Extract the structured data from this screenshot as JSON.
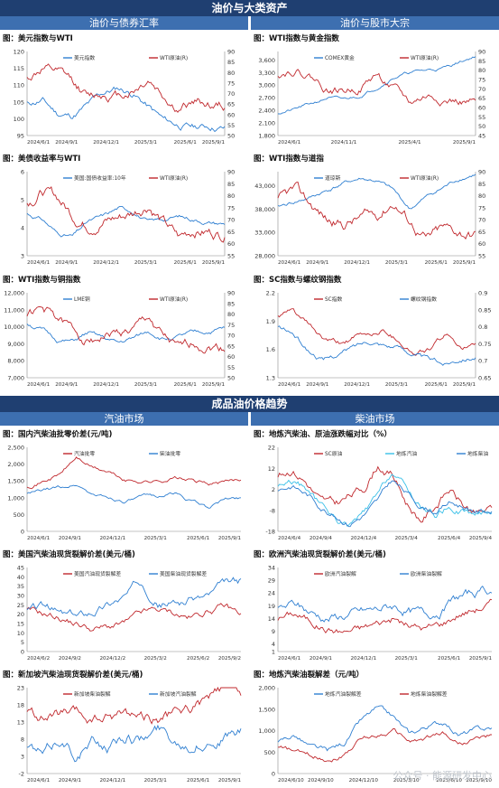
{
  "banners": {
    "top": "油价与大类资产",
    "bottom": "成品油价格趋势"
  },
  "subheaders": {
    "tl": "油价与债券汇率",
    "tr": "油价与股市大宗",
    "bl": "汽油市场",
    "br": "柴油市场"
  },
  "colors": {
    "red": "#c0282d",
    "blue": "#2f7fd1",
    "cyan": "#39c0e8",
    "banner": "#1f3f71",
    "sub": "#3d6fb0"
  },
  "watermark": "公众号 · 能源研发中心",
  "chart_data": [
    {
      "id": "p1",
      "type": "line",
      "title": "图：美元指数与WTI",
      "ylim": [
        95,
        120
      ],
      "yticks": [
        95,
        100,
        105,
        110,
        115,
        120
      ],
      "y2lim": [
        50,
        90
      ],
      "y2ticks": [
        50,
        55,
        60,
        65,
        70,
        75,
        80,
        85,
        90
      ],
      "xticks": [
        "2024/6/1",
        "2024/9/1",
        "2024/12/1",
        "2025/3/1",
        "2025/6/1",
        "2025/9/1"
      ],
      "series": [
        {
          "name": "美元指数",
          "axis": "left",
          "color": "#2f7fd1",
          "seed": 11,
          "vol": 0.7,
          "anchors": [
            104.5,
            105.5,
            101.5,
            100.8,
            104,
            107.5,
            109,
            107.5,
            103.5,
            99.5,
            98,
            97.5,
            97.8,
            97.2
          ]
        },
        {
          "name": "WTI原油(R)",
          "axis": "right",
          "color": "#c0282d",
          "seed": 12,
          "vol": 1.6,
          "anchors": [
            77,
            82,
            79,
            75,
            68,
            70,
            69,
            72,
            77,
            69,
            62,
            66,
            65,
            64
          ]
        }
      ]
    },
    {
      "id": "p2",
      "type": "line",
      "title": "图：WTI指数与黄金指数",
      "ylim": [
        1800,
        3800
      ],
      "yticks": [
        1800,
        2100,
        2400,
        2700,
        3000,
        3300,
        3600
      ],
      "y2lim": [
        45,
        90
      ],
      "y2ticks": [
        45,
        50,
        55,
        60,
        65,
        70,
        75,
        80,
        85,
        90
      ],
      "xticks": [
        "2024/6/1",
        "2024/11/1",
        "2025/4/1",
        "2025/9/1"
      ],
      "series": [
        {
          "name": "COMEX黄金",
          "axis": "left",
          "color": "#2f7fd1",
          "seed": 21,
          "vol": 25,
          "anchors": [
            2330,
            2420,
            2550,
            2700,
            2650,
            2750,
            2950,
            3200,
            3300,
            3350,
            3400,
            3550,
            3700
          ]
        },
        {
          "name": "WTI原油(R)",
          "axis": "right",
          "color": "#c0282d",
          "seed": 22,
          "vol": 1.5,
          "anchors": [
            78,
            81,
            77,
            70,
            69,
            71,
            78,
            70,
            62,
            66,
            65,
            63,
            62
          ]
        }
      ]
    },
    {
      "id": "p3",
      "type": "line",
      "title": "图：美债收益率与WTI",
      "ylim": [
        3,
        6
      ],
      "yticks": [
        3,
        4,
        5,
        6
      ],
      "y2lim": [
        55,
        90
      ],
      "y2ticks": [
        55,
        60,
        65,
        70,
        75,
        80,
        85,
        90
      ],
      "xticks": [
        "2024/6/1",
        "2024/9/1",
        "2024/12/1",
        "2025/3/1",
        "2025/6/1",
        "2025/9/1"
      ],
      "series": [
        {
          "name": "美国:国债收益率:10年",
          "axis": "left",
          "color": "#2f7fd1",
          "seed": 31,
          "vol": 0.05,
          "anchors": [
            4.5,
            4.3,
            3.8,
            3.7,
            4.2,
            4.4,
            4.7,
            4.6,
            4.2,
            4.3,
            4.4,
            4.3,
            4.2,
            4.15
          ]
        },
        {
          "name": "WTI原油(R)",
          "axis": "right",
          "color": "#c0282d",
          "seed": 32,
          "vol": 1.6,
          "anchors": [
            77,
            82,
            79,
            72,
            68,
            70,
            71,
            73,
            77,
            69,
            62,
            66,
            65,
            64
          ]
        }
      ]
    },
    {
      "id": "p4",
      "type": "line",
      "title": "图：WTI指数与道指",
      "ylim": [
        28000,
        46000
      ],
      "yticks": [
        28000,
        33000,
        38000,
        43000
      ],
      "y2lim": [
        55,
        90
      ],
      "y2ticks": [
        55,
        60,
        65,
        70,
        75,
        80,
        85,
        90
      ],
      "xticks": [
        "2024/6/1",
        "2024/9/1",
        "2024/12/1",
        "2025/3/1",
        "2025/6/1",
        "2025/9/1"
      ],
      "series": [
        {
          "name": "道琼斯",
          "axis": "left",
          "color": "#2f7fd1",
          "seed": 41,
          "vol": 280,
          "anchors": [
            38500,
            39500,
            40500,
            42000,
            43500,
            44500,
            44000,
            42000,
            38000,
            40500,
            42500,
            44500,
            45500
          ]
        },
        {
          "name": "WTI原油(R)",
          "axis": "right",
          "color": "#c0282d",
          "seed": 42,
          "vol": 1.6,
          "anchors": [
            78,
            82,
            76,
            70,
            68,
            71,
            72,
            78,
            70,
            62,
            66,
            65,
            64
          ]
        }
      ]
    },
    {
      "id": "p5",
      "type": "line",
      "title": "图：WTI指数与铜指数",
      "ylim": [
        7000,
        12000
      ],
      "yticks": [
        7000,
        8000,
        9000,
        10000,
        11000,
        12000
      ],
      "y2lim": [
        50,
        90
      ],
      "y2ticks": [
        50,
        55,
        60,
        65,
        70,
        75,
        80,
        85,
        90
      ],
      "xticks": [
        "2024/6/1",
        "2024/9/1",
        "2024/12/1",
        "2025/3/1",
        "2025/6/1",
        "2025/9/1"
      ],
      "series": [
        {
          "name": "LME铜",
          "axis": "left",
          "color": "#2f7fd1",
          "seed": 51,
          "vol": 90,
          "anchors": [
            10200,
            9800,
            9200,
            9100,
            9600,
            9300,
            9000,
            9300,
            9700,
            9300,
            9400,
            9600,
            9700,
            9900
          ]
        },
        {
          "name": "WTI原油(R)",
          "axis": "right",
          "color": "#c0282d",
          "seed": 52,
          "vol": 1.6,
          "anchors": [
            80,
            82,
            78,
            72,
            68,
            70,
            71,
            72,
            78,
            69,
            62,
            66,
            65,
            64
          ]
        }
      ]
    },
    {
      "id": "p6",
      "type": "line",
      "title": "图：SC指数与螺纹钢指数",
      "ylim": [
        1.3,
        2.2
      ],
      "yticks": [
        1.3,
        1.6,
        1.9,
        2.2
      ],
      "y2lim": [
        0.65,
        0.9
      ],
      "y2ticks": [
        0.65,
        0.7,
        0.75,
        0.8,
        0.85,
        0.9
      ],
      "xticks": [
        "2024/6/1",
        "2024/9/1",
        "2024/12/1",
        "2025/3/1",
        "2025/6/1",
        "2025/9/1"
      ],
      "series": [
        {
          "name": "SC指数",
          "axis": "left",
          "color": "#c0282d",
          "seed": 61,
          "vol": 0.02,
          "anchors": [
            1.95,
            2.0,
            1.85,
            1.7,
            1.65,
            1.72,
            1.75,
            1.8,
            1.7,
            1.55,
            1.6,
            1.75,
            1.65,
            1.62
          ]
        },
        {
          "name": "螺纹钢指数",
          "axis": "right",
          "color": "#2f7fd1",
          "seed": 62,
          "vol": 0.005,
          "anchors": [
            0.8,
            0.78,
            0.73,
            0.7,
            0.72,
            0.74,
            0.76,
            0.75,
            0.74,
            0.72,
            0.7,
            0.69,
            0.71,
            0.715
          ]
        }
      ]
    },
    {
      "id": "p7",
      "type": "line",
      "title": "图：国内汽柴油批零价差(元/吨)",
      "ylim": [
        0,
        2500
      ],
      "yticks": [
        0,
        500,
        1000,
        1500,
        2000,
        2500
      ],
      "y2lim": null,
      "y2ticks": [],
      "xticks": [
        "2024/6/1",
        "2024/9/1",
        "2024/12/1",
        "2025/3/1",
        "2025/6/1",
        "2025/9/1"
      ],
      "series": [
        {
          "name": "汽油批零",
          "axis": "left",
          "color": "#c0282d",
          "seed": 71,
          "vol": 40,
          "anchors": [
            1350,
            1500,
            1700,
            2200,
            1900,
            1750,
            1500,
            1500,
            1500,
            1600,
            1500,
            1400,
            1450,
            1550
          ]
        },
        {
          "name": "柴油批零",
          "axis": "left",
          "color": "#2f7fd1",
          "seed": 72,
          "vol": 35,
          "anchors": [
            1100,
            1200,
            1300,
            1400,
            1100,
            1000,
            900,
            1000,
            1050,
            1150,
            900,
            700,
            950,
            1000
          ]
        }
      ]
    },
    {
      "id": "p8",
      "type": "line",
      "title": "图：地炼汽柴油、原油涨跌幅对比（%）",
      "ylim": [
        -18,
        22
      ],
      "yticks": [
        -18,
        -8,
        2,
        12,
        22
      ],
      "y2lim": null,
      "y2ticks": [],
      "xticks": [
        "2024/6/4",
        "2024/9/4",
        "2024/12/4",
        "2025/3/4",
        "2025/6/4",
        "2025/9/4"
      ],
      "series": [
        {
          "name": "SC原油",
          "axis": "left",
          "color": "#c0282d",
          "seed": 81,
          "vol": 1.5,
          "anchors": [
            8,
            12,
            6,
            -4,
            -6,
            -2,
            2,
            14,
            10,
            -4,
            -12,
            -6,
            2,
            -6,
            -10,
            -8
          ]
        },
        {
          "name": "地炼汽油",
          "axis": "left",
          "color": "#39c0e8",
          "seed": 82,
          "vol": 1.2,
          "anchors": [
            4,
            6,
            2,
            -6,
            -12,
            -16,
            -10,
            -2,
            10,
            2,
            -6,
            -10,
            -6,
            -8,
            -10,
            -8
          ]
        },
        {
          "name": "地炼柴油",
          "axis": "left",
          "color": "#2f7fd1",
          "seed": 83,
          "vol": 1.0,
          "anchors": [
            2,
            4,
            0,
            -6,
            -10,
            -14,
            -10,
            -4,
            6,
            0,
            -6,
            -8,
            -4,
            -6,
            -8,
            -8
          ]
        }
      ]
    },
    {
      "id": "p9",
      "type": "line",
      "title": "图：美国汽柴油现货裂解价差(美元/桶)",
      "ylim": [
        0,
        45
      ],
      "yticks": [
        0,
        5,
        10,
        15,
        20,
        25,
        30,
        35,
        40,
        45
      ],
      "y2lim": null,
      "y2ticks": [],
      "xticks": [
        "2024/6/2",
        "2024/9/2",
        "2024/12/2",
        "2025/3/2",
        "2025/6/2",
        "2025/9/2"
      ],
      "series": [
        {
          "name": "美国汽油现货裂解差",
          "axis": "left",
          "color": "#c0282d",
          "seed": 91,
          "vol": 1.3,
          "anchors": [
            22,
            20,
            18,
            15,
            12,
            13,
            15,
            20,
            22,
            20,
            18,
            22,
            24,
            20
          ]
        },
        {
          "name": "美国柴油现货裂解差",
          "axis": "left",
          "color": "#2f7fd1",
          "seed": 92,
          "vol": 1.6,
          "anchors": [
            22,
            24,
            20,
            18,
            22,
            26,
            30,
            38,
            27,
            26,
            28,
            30,
            35,
            37
          ]
        }
      ]
    },
    {
      "id": "p10",
      "type": "line",
      "title": "图：欧洲汽柴油现货裂解价差(美元/桶)",
      "ylim": [
        1,
        34
      ],
      "yticks": [
        1,
        4,
        9,
        14,
        19,
        24,
        29,
        34
      ],
      "y2lim": null,
      "y2ticks": [],
      "xticks": [
        "2024/6/1",
        "2024/9/1",
        "2024/12/1",
        "2025/3/1",
        "2025/6/1",
        "2025/9/1"
      ],
      "series": [
        {
          "name": "欧洲汽油裂解",
          "axis": "left",
          "color": "#c0282d",
          "seed": 101,
          "vol": 1.1,
          "anchors": [
            14,
            16,
            13,
            10,
            9,
            10,
            12,
            14,
            11,
            10,
            12,
            16,
            18,
            20
          ]
        },
        {
          "name": "欧洲柴油裂解",
          "axis": "left",
          "color": "#2f7fd1",
          "seed": 102,
          "vol": 1.3,
          "anchors": [
            17,
            19,
            16,
            14,
            15,
            16,
            17,
            19,
            17,
            15,
            18,
            22,
            24,
            25
          ]
        }
      ]
    },
    {
      "id": "p11",
      "type": "line",
      "title": "图：新加坡汽柴油现货裂解价差(美元/桶)",
      "ylim": [
        -2,
        23
      ],
      "yticks": [
        -2,
        3,
        8,
        13,
        18,
        23
      ],
      "y2lim": null,
      "y2ticks": [],
      "xticks": [
        "2024/6/1",
        "2024/9/1",
        "2024/12/1",
        "2025/3/1",
        "2025/6/1",
        "2025/9/1"
      ],
      "series": [
        {
          "name": "新加坡柴油裂解",
          "axis": "left",
          "color": "#c0282d",
          "seed": 111,
          "vol": 1.2,
          "anchors": [
            16,
            14,
            15,
            14,
            13,
            14,
            16,
            15,
            14,
            15,
            17,
            19,
            22,
            21
          ]
        },
        {
          "name": "新加坡汽油裂解",
          "axis": "left",
          "color": "#2f7fd1",
          "seed": 112,
          "vol": 1.2,
          "anchors": [
            6,
            3,
            8,
            4,
            7,
            6,
            9,
            8,
            11,
            8,
            7,
            8,
            9,
            10
          ]
        }
      ]
    },
    {
      "id": "p12",
      "type": "line",
      "title": "图：地炼汽柴油裂解差（元/吨）",
      "ylim": [
        0,
        2000
      ],
      "yticks": [
        0,
        500,
        1000,
        1500,
        2000
      ],
      "y2lim": null,
      "y2ticks": [],
      "xticks": [
        "2024/6/10",
        "2024/9/10",
        "2024/12/10",
        "2025/3/10",
        "2025/6/10",
        "2025/9/10"
      ],
      "series": [
        {
          "name": "地炼汽油裂解差",
          "axis": "left",
          "color": "#2f7fd1",
          "seed": 121,
          "vol": 45,
          "anchors": [
            700,
            900,
            600,
            500,
            700,
            1200,
            1500,
            1300,
            900,
            1100,
            1200,
            900,
            1000,
            1050
          ]
        },
        {
          "name": "地炼柴油裂解差",
          "axis": "left",
          "color": "#c0282d",
          "seed": 122,
          "vol": 40,
          "anchors": [
            600,
            500,
            400,
            350,
            450,
            800,
            900,
            1000,
            750,
            800,
            950,
            700,
            800,
            850
          ]
        }
      ]
    }
  ]
}
